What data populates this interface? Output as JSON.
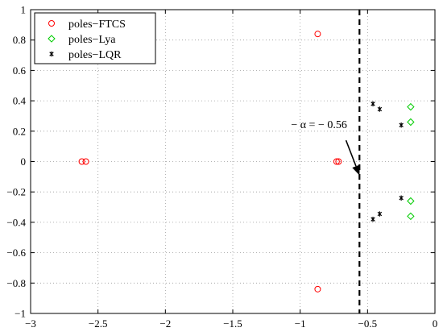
{
  "chart_data": {
    "type": "scatter",
    "title": "",
    "xlabel": "",
    "ylabel": "",
    "xlim": [
      -3,
      0
    ],
    "ylim": [
      -1,
      1
    ],
    "xticks": [
      -3,
      -2.5,
      -2,
      -1.5,
      -1,
      -0.5,
      0
    ],
    "yticks": [
      -1,
      -0.8,
      -0.6,
      -0.4,
      -0.2,
      0,
      0.2,
      0.4,
      0.6,
      0.8,
      1
    ],
    "xtick_labels": [
      "−3",
      "−2.5",
      "−2",
      "−1.5",
      "−1",
      "−0.5",
      "0"
    ],
    "ytick_labels": [
      "−1",
      "−0.8",
      "−0.6",
      "−0.4",
      "−0.2",
      "0",
      "0.2",
      "0.4",
      "0.6",
      "0.8",
      "1"
    ],
    "grid": true,
    "legend_position": "top-left",
    "series": [
      {
        "name": "poles−FTCS",
        "marker": "circle",
        "color": "#ff0000",
        "points": [
          [
            -2.62,
            0
          ],
          [
            -2.59,
            0
          ],
          [
            -0.87,
            0.84
          ],
          [
            -0.87,
            -0.84
          ],
          [
            -0.73,
            0
          ],
          [
            -0.715,
            0
          ]
        ]
      },
      {
        "name": "poles−Lya",
        "marker": "diamond",
        "color": "#00cc00",
        "points": [
          [
            -0.18,
            0.36
          ],
          [
            -0.18,
            0.26
          ],
          [
            -0.18,
            -0.26
          ],
          [
            -0.18,
            -0.36
          ]
        ]
      },
      {
        "name": "poles−LQR",
        "marker": "star",
        "color": "#000000",
        "points": [
          [
            -0.46,
            0.38
          ],
          [
            -0.41,
            0.345
          ],
          [
            -0.25,
            0.24
          ],
          [
            -0.25,
            -0.24
          ],
          [
            -0.41,
            -0.345
          ],
          [
            -0.46,
            -0.38
          ]
        ]
      }
    ],
    "vline": {
      "x": -0.56,
      "style": "dashed",
      "color": "#000000"
    },
    "annotation": {
      "text": "− α = − 0.56",
      "text_at": [
        -0.86,
        0.22
      ],
      "arrow_from": [
        -0.66,
        0.14
      ],
      "arrow_to": [
        -0.56,
        -0.09
      ]
    }
  }
}
